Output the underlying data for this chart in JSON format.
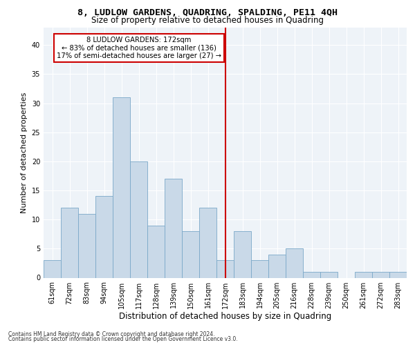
{
  "title1": "8, LUDLOW GARDENS, QUADRING, SPALDING, PE11 4QH",
  "title2": "Size of property relative to detached houses in Quadring",
  "xlabel": "Distribution of detached houses by size in Quadring",
  "ylabel": "Number of detached properties",
  "footer1": "Contains HM Land Registry data © Crown copyright and database right 2024.",
  "footer2": "Contains public sector information licensed under the Open Government Licence v3.0.",
  "categories": [
    "61sqm",
    "72sqm",
    "83sqm",
    "94sqm",
    "105sqm",
    "117sqm",
    "128sqm",
    "139sqm",
    "150sqm",
    "161sqm",
    "172sqm",
    "183sqm",
    "194sqm",
    "205sqm",
    "216sqm",
    "228sqm",
    "239sqm",
    "250sqm",
    "261sqm",
    "272sqm",
    "283sqm"
  ],
  "values": [
    3,
    12,
    11,
    14,
    31,
    20,
    9,
    17,
    8,
    12,
    3,
    8,
    3,
    4,
    5,
    1,
    1,
    0,
    1,
    1,
    1
  ],
  "bar_color": "#c9d9e8",
  "bar_edge_color": "#7aa8c8",
  "property_line_index": 10,
  "property_label": "8 LUDLOW GARDENS: 172sqm",
  "annotation_line1": "← 83% of detached houses are smaller (136)",
  "annotation_line2": "17% of semi-detached houses are larger (27) →",
  "annotation_box_color": "#ffffff",
  "annotation_box_edge_color": "#cc0000",
  "line_color": "#cc0000",
  "ylim": [
    0,
    43
  ],
  "yticks": [
    0,
    5,
    10,
    15,
    20,
    25,
    30,
    35,
    40
  ],
  "bg_color": "#eef3f8",
  "title1_fontsize": 9.5,
  "title2_fontsize": 8.5,
  "axis_label_fontsize": 8,
  "tick_fontsize": 7,
  "footer_fontsize": 5.5,
  "annotation_fontsize": 7.2
}
